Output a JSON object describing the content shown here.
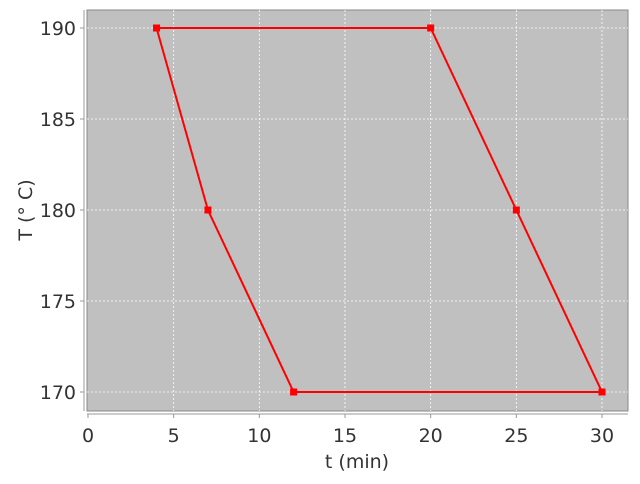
{
  "chart_data": {
    "type": "line",
    "title": "",
    "xlabel": "t (min)",
    "ylabel": "T (° C)",
    "xlim": [
      0,
      31.5
    ],
    "ylim": [
      169,
      191
    ],
    "xticks": [
      0,
      5,
      10,
      15,
      20,
      25,
      30
    ],
    "yticks": [
      170,
      175,
      180,
      185,
      190
    ],
    "grid": true,
    "series": [
      {
        "x": [
          4,
          20,
          25,
          30,
          12,
          7,
          4
        ],
        "y": [
          190,
          190,
          180,
          170,
          170,
          180,
          190
        ],
        "color": "#ff0000",
        "marker": "square"
      }
    ],
    "colors": {
      "plot_background": "#c0c0c0",
      "grid": "#ffffff"
    }
  }
}
